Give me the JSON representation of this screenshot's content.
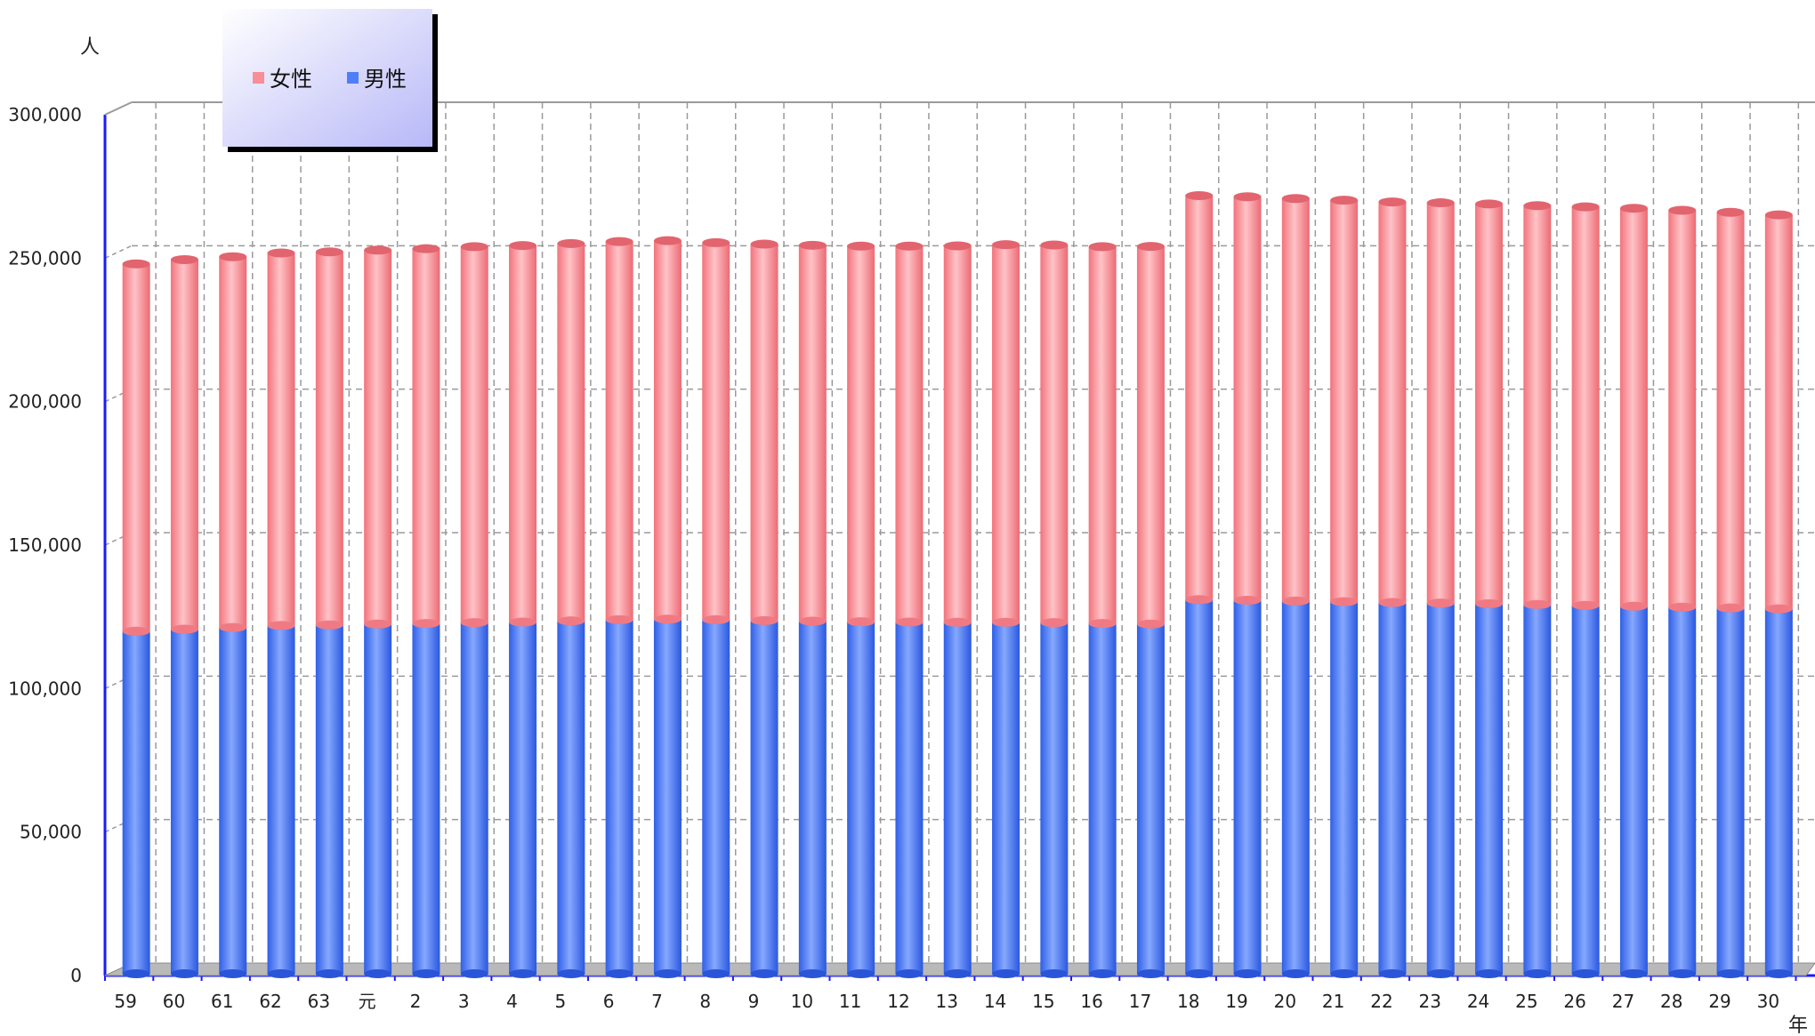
{
  "chart_data": {
    "type": "bar",
    "stacked": true,
    "y_unit_label": "人",
    "x_unit_label": "年",
    "categories": [
      "59",
      "60",
      "61",
      "62",
      "63",
      "元",
      "2",
      "3",
      "4",
      "5",
      "6",
      "7",
      "8",
      "9",
      "10",
      "11",
      "12",
      "13",
      "14",
      "15",
      "16",
      "17",
      "18",
      "19",
      "20",
      "21",
      "22",
      "23",
      "24",
      "25",
      "26",
      "27",
      "28",
      "29",
      "30"
    ],
    "series": [
      {
        "name": "男性",
        "color": "#4f7ff8",
        "values": [
          120000,
          120700,
          121300,
          122000,
          122200,
          122500,
          122700,
          123000,
          123200,
          123600,
          124000,
          124200,
          124000,
          123700,
          123500,
          123300,
          123200,
          123100,
          123100,
          123000,
          122700,
          122500,
          131000,
          130800,
          130500,
          130300,
          130000,
          129800,
          129600,
          129300,
          129000,
          128700,
          128400,
          128100,
          127800
        ]
      },
      {
        "name": "女性",
        "color": "#f88e96",
        "values": [
          128000,
          128800,
          129200,
          129800,
          130000,
          130300,
          130600,
          131000,
          131200,
          131500,
          131800,
          131900,
          131400,
          131200,
          131000,
          130900,
          131000,
          131200,
          131600,
          131600,
          131300,
          131600,
          140800,
          140600,
          140300,
          139900,
          139600,
          139500,
          139300,
          139000,
          138900,
          138700,
          138300,
          137900,
          137300
        ]
      }
    ],
    "yticks": [
      "0",
      "50,000",
      "100,000",
      "150,000",
      "200,000",
      "250,000",
      "300,000"
    ],
    "ylim": [
      0,
      300000
    ],
    "grid": true,
    "legend_position": "top-left"
  }
}
